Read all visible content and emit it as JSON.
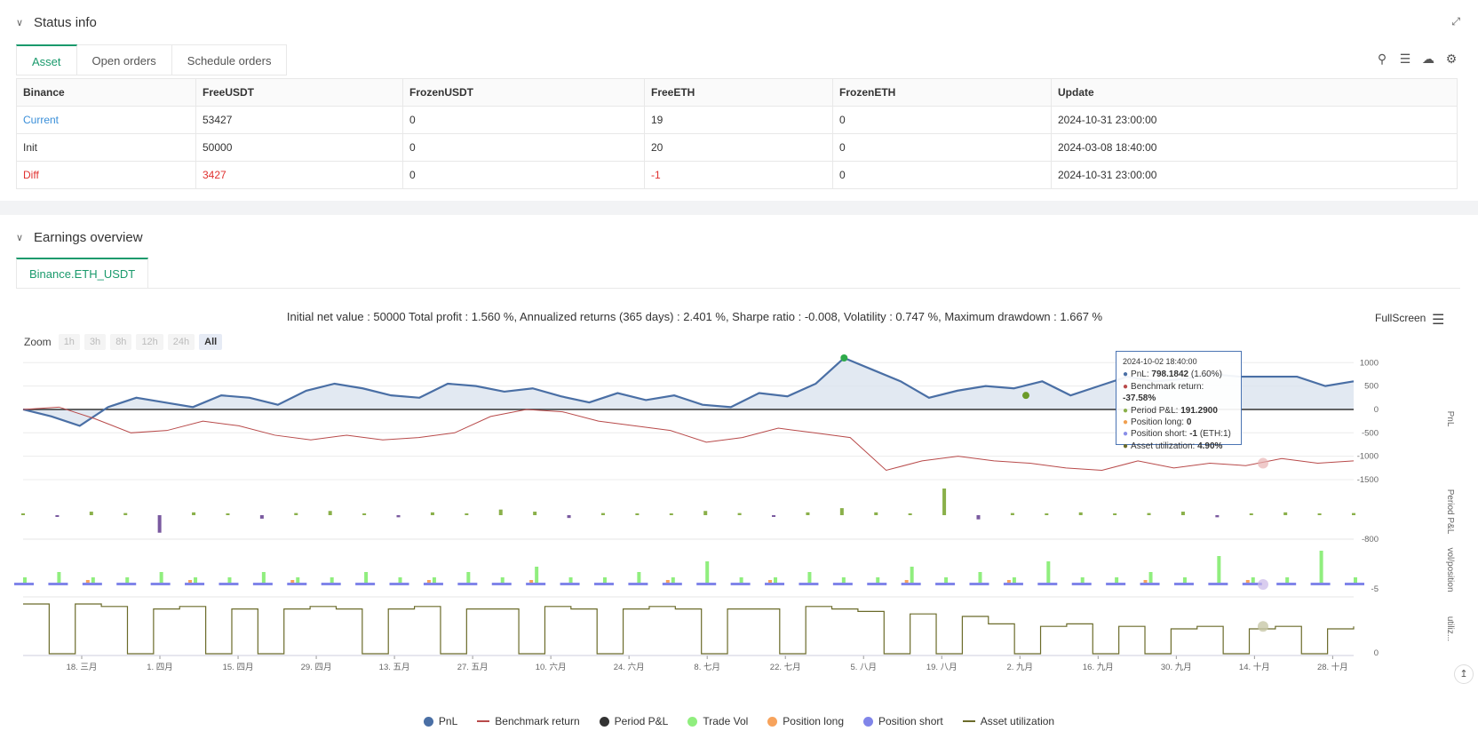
{
  "status": {
    "title": "Status info",
    "tabs": [
      "Asset",
      "Open orders",
      "Schedule orders"
    ],
    "table": {
      "headers": [
        "Binance",
        "FreeUSDT",
        "FrozenUSDT",
        "FreeETH",
        "FrozenETH",
        "Update"
      ],
      "rows": [
        [
          "Current",
          "53427",
          "0",
          "19",
          "0",
          "2024-10-31 23:00:00"
        ],
        [
          "Init",
          "50000",
          "0",
          "20",
          "0",
          "2024-03-08 18:40:00"
        ],
        [
          "Diff",
          "3427",
          "0",
          "-1",
          "0",
          "2024-10-31 23:00:00"
        ]
      ]
    },
    "tool_icons": [
      "search-icon",
      "list-icon",
      "cloud-download-icon",
      "gear-icon"
    ]
  },
  "earnings": {
    "title": "Earnings overview",
    "instrument_tab": "Binance.ETH_USDT",
    "summary": "Initial net value : 50000 Total profit : 1.560 %, Annualized returns (365 days) : 2.401 %, Sharpe ratio : -0.008, Volatility : 0.747 %, Maximum drawdown : 1.667 %",
    "fullscreen_label": "FullScreen",
    "zoom": {
      "label": "Zoom",
      "buttons": [
        "1h",
        "3h",
        "8h",
        "12h",
        "24h",
        "All"
      ],
      "active": "All"
    },
    "tooltip": {
      "date": "2024-10-02 18:40:00",
      "rows": [
        {
          "label": "PnL: ",
          "value": "798.1842",
          "suffix": " (1.60%)",
          "color": "#4a6fa5"
        },
        {
          "label": "Benchmark return: ",
          "value": "-37.58%",
          "suffix": "",
          "color": "#b84a4a"
        },
        {
          "label": "Period P&L: ",
          "value": "191.2900",
          "suffix": "",
          "color": "#8ab04a"
        },
        {
          "label": "Position long: ",
          "value": "0",
          "suffix": "",
          "color": "#f0a050"
        },
        {
          "label": "Position short: ",
          "value": "-1",
          "suffix": " (ETH:1)",
          "color": "#8a8fe8"
        },
        {
          "label": "Asset utilization: ",
          "value": "4.90%",
          "suffix": "",
          "color": "#6b6b2a"
        }
      ]
    },
    "legend": [
      {
        "name": "PnL",
        "color": "#4a6fa5",
        "shape": "dot"
      },
      {
        "name": "Benchmark return",
        "color": "#b84a4a",
        "shape": "line"
      },
      {
        "name": "Period P&L",
        "color": "#333333",
        "shape": "dot"
      },
      {
        "name": "Trade Vol",
        "color": "#90ee7e",
        "shape": "dot"
      },
      {
        "name": "Position long",
        "color": "#f7a35c",
        "shape": "dot"
      },
      {
        "name": "Position short",
        "color": "#8085e9",
        "shape": "dot"
      },
      {
        "name": "Asset utilization",
        "color": "#6b6b2a",
        "shape": "line"
      }
    ]
  },
  "chart_data": {
    "type": "line",
    "x_ticks": [
      "18. 三月",
      "1. 四月",
      "15. 四月",
      "29. 四月",
      "13. 五月",
      "27. 五月",
      "10. 六月",
      "24. 六月",
      "8. 七月",
      "22. 七月",
      "5. 八月",
      "19. 八月",
      "2. 九月",
      "16. 九月",
      "30. 九月",
      "14. 十月",
      "28. 十月"
    ],
    "panes": [
      {
        "axis_title": "PnL",
        "y_ticks": [
          1000,
          500,
          0,
          -500,
          -1000,
          -1500
        ],
        "ylim": [
          -1500,
          1100
        ]
      },
      {
        "axis_title": "Period P&L",
        "y_ticks": [
          -800
        ]
      },
      {
        "axis_title": "vol/position",
        "y_ticks": [
          -5
        ]
      },
      {
        "axis_title": "utiliz...",
        "y_ticks": [
          0
        ]
      }
    ],
    "series": [
      {
        "name": "PnL",
        "pane": 0,
        "values": [
          0,
          -150,
          -350,
          50,
          250,
          150,
          50,
          300,
          250,
          100,
          400,
          550,
          450,
          300,
          250,
          550,
          500,
          380,
          450,
          280,
          150,
          350,
          200,
          300,
          100,
          50,
          350,
          280,
          550,
          1100,
          850,
          600,
          250,
          400,
          500,
          450,
          600,
          300,
          500,
          700,
          600,
          650,
          750,
          700,
          700,
          700,
          500,
          600
        ]
      },
      {
        "name": "Benchmark return",
        "pane": 0,
        "values": [
          0,
          50,
          -200,
          -500,
          -450,
          -250,
          -350,
          -550,
          -650,
          -550,
          -650,
          -600,
          -500,
          -150,
          0,
          -50,
          -250,
          -350,
          -450,
          -700,
          -600,
          -400,
          -500,
          -600,
          -1300,
          -1100,
          -1000,
          -1100,
          -1150,
          -1250,
          -1300,
          -1100,
          -1250,
          -1150,
          -1200,
          -1050,
          -1150,
          -1100
        ]
      },
      {
        "name": "Period P&L",
        "pane": 1,
        "values": [
          10,
          -20,
          50,
          30,
          -250,
          40,
          20,
          -50,
          30,
          60,
          10,
          -30,
          40,
          20,
          80,
          50,
          -40,
          30,
          20,
          10,
          60,
          30,
          -20,
          40,
          100,
          40,
          20,
          380,
          -60,
          30,
          10,
          40,
          20,
          30,
          50,
          -30,
          20,
          40,
          10,
          30
        ]
      },
      {
        "name": "Trade Vol",
        "pane": 2,
        "values": [
          1,
          2,
          1,
          1,
          2,
          1,
          1,
          2,
          1,
          1,
          2,
          1,
          1,
          2,
          1,
          3,
          1,
          1,
          2,
          1,
          4,
          1,
          1,
          2,
          1,
          1,
          3,
          1,
          2,
          1,
          4,
          1,
          1,
          2,
          1,
          5,
          1,
          1,
          6,
          1
        ]
      },
      {
        "name": "Position long",
        "pane": 2,
        "values": [
          0,
          0,
          1,
          0,
          0,
          1,
          0,
          0,
          1,
          0,
          0,
          0,
          1,
          0,
          0,
          1,
          0,
          0,
          0,
          1,
          0,
          0,
          1,
          0,
          0,
          0,
          1,
          0,
          0,
          1,
          0,
          0,
          0,
          1,
          0,
          0,
          1,
          0,
          0,
          0
        ]
      },
      {
        "name": "Position short",
        "pane": 2,
        "values": [
          -1,
          -1,
          -1,
          -1,
          -1,
          -1,
          -1,
          -1,
          -1,
          -1,
          -1,
          -1,
          -1,
          -1,
          -1,
          -1,
          -1,
          -1,
          -1,
          -1,
          -1,
          -1,
          -1,
          -1,
          -1,
          -1,
          -1,
          -1,
          -1,
          -1,
          -1,
          -1,
          -1,
          -1,
          -1,
          -1,
          -1,
          -1,
          -1,
          -1
        ]
      },
      {
        "name": "Asset utilization",
        "pane": 3,
        "values": [
          100,
          0,
          100,
          95,
          0,
          90,
          95,
          0,
          90,
          0,
          90,
          95,
          90,
          0,
          90,
          95,
          0,
          90,
          90,
          0,
          95,
          90,
          0,
          90,
          95,
          90,
          0,
          90,
          90,
          0,
          95,
          90,
          85,
          0,
          80,
          0,
          75,
          60,
          0,
          55,
          60,
          0,
          55,
          0,
          50,
          55,
          0,
          50,
          55,
          0,
          50,
          55
        ]
      }
    ]
  }
}
